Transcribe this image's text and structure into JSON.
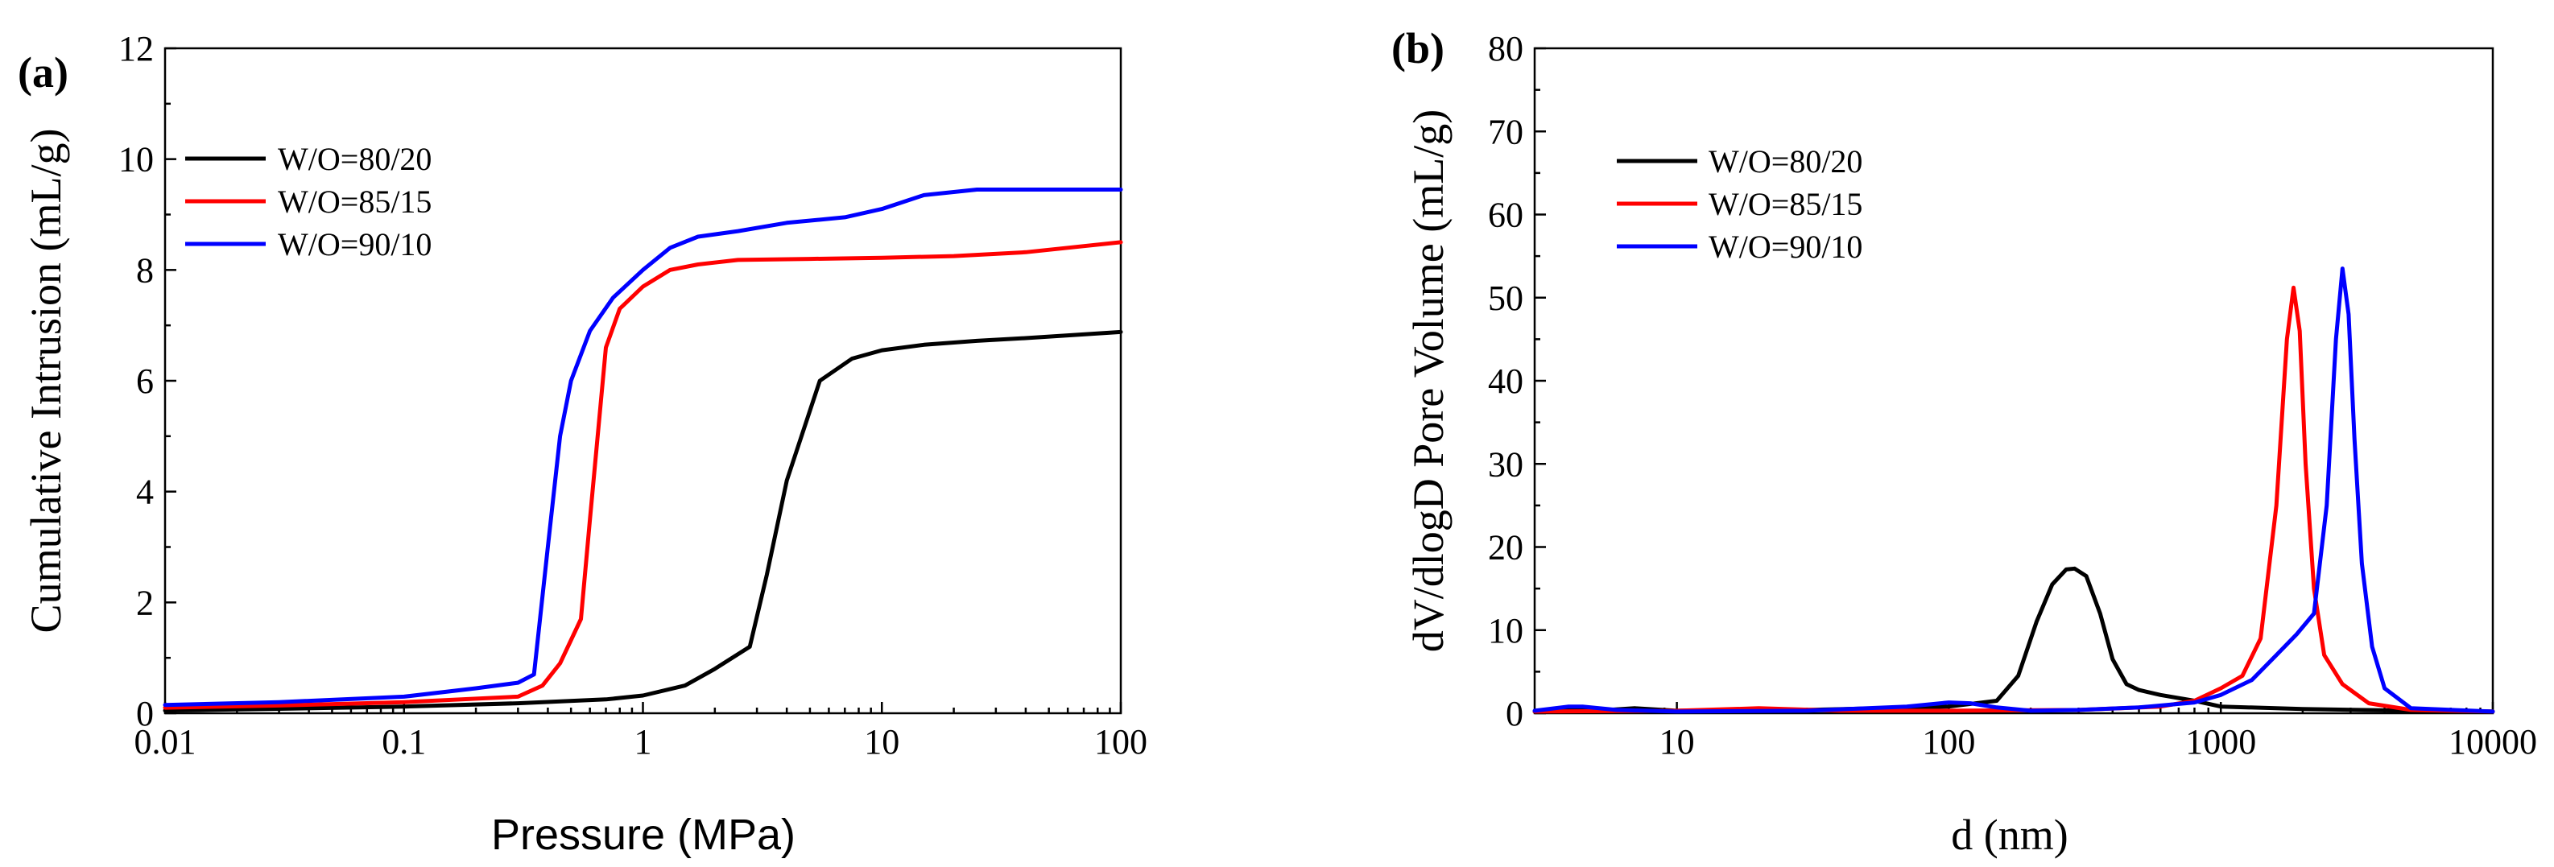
{
  "chart_data": [
    {
      "type": "line",
      "panel_label": "(a)",
      "xlabel": "Pressure (MPa)",
      "ylabel": "Cumulative Intrusion (mL/g)",
      "xscale": "log",
      "xlim": [
        0.01,
        100
      ],
      "ylim": [
        0,
        12
      ],
      "x_ticks": [
        0.01,
        0.1,
        1,
        10,
        100
      ],
      "x_tick_labels": [
        "0.01",
        "0.1",
        "1",
        "10",
        "100"
      ],
      "y_ticks": [
        0,
        2,
        4,
        6,
        8,
        10,
        12
      ],
      "y_tick_labels": [
        "0",
        "2",
        "4",
        "6",
        "8",
        "10",
        "12"
      ],
      "legend_position": "top-left",
      "series": [
        {
          "name": "W/O=80/20",
          "color": "#000000",
          "x": [
            0.01,
            0.03,
            0.1,
            0.3,
            0.7,
            1.0,
            1.5,
            2.0,
            2.8,
            3.3,
            4.0,
            5.5,
            7.5,
            10,
            15,
            25,
            40,
            60,
            100
          ],
          "y": [
            0.05,
            0.08,
            0.12,
            0.18,
            0.25,
            0.32,
            0.5,
            0.8,
            1.2,
            2.5,
            4.2,
            6.0,
            6.4,
            6.55,
            6.65,
            6.72,
            6.77,
            6.82,
            6.88
          ]
        },
        {
          "name": "W/O=85/15",
          "color": "#ff0000",
          "x": [
            0.01,
            0.03,
            0.1,
            0.3,
            0.38,
            0.45,
            0.55,
            0.6,
            0.7,
            0.8,
            1.0,
            1.3,
            1.7,
            2.5,
            5,
            10,
            20,
            40,
            60,
            100
          ],
          "y": [
            0.1,
            0.14,
            0.2,
            0.3,
            0.5,
            0.9,
            1.7,
            3.5,
            6.6,
            7.3,
            7.7,
            8.0,
            8.1,
            8.18,
            8.2,
            8.22,
            8.25,
            8.32,
            8.4,
            8.5
          ]
        },
        {
          "name": "W/O=90/10",
          "color": "#0000ff",
          "x": [
            0.01,
            0.03,
            0.1,
            0.2,
            0.3,
            0.35,
            0.4,
            0.45,
            0.5,
            0.6,
            0.75,
            1.0,
            1.3,
            1.7,
            2.5,
            4,
            7,
            10,
            15,
            25,
            40,
            100
          ],
          "y": [
            0.15,
            0.2,
            0.3,
            0.45,
            0.55,
            0.7,
            3.0,
            5.0,
            6.0,
            6.9,
            7.5,
            8.0,
            8.4,
            8.6,
            8.7,
            8.85,
            8.95,
            9.1,
            9.35,
            9.45,
            9.45,
            9.45
          ]
        }
      ]
    },
    {
      "type": "line",
      "panel_label": "(b)",
      "xlabel": "d (nm)",
      "ylabel": "dV/dlogD Pore Volume (mL/g)",
      "xscale": "log",
      "xlim": [
        3,
        10000
      ],
      "ylim": [
        0,
        80
      ],
      "x_ticks": [
        10,
        100,
        1000,
        10000
      ],
      "x_tick_labels": [
        "10",
        "100",
        "1000",
        "10000"
      ],
      "y_ticks": [
        0,
        10,
        20,
        30,
        40,
        50,
        60,
        70,
        80
      ],
      "y_tick_labels": [
        "0",
        "10",
        "20",
        "30",
        "40",
        "50",
        "60",
        "70",
        "80"
      ],
      "legend_position": "top-left",
      "series": [
        {
          "name": "W/O=80/20",
          "color": "#000000",
          "x": [
            3,
            4,
            5,
            7,
            10,
            30,
            100,
            150,
            180,
            210,
            240,
            270,
            290,
            320,
            360,
            400,
            450,
            500,
            600,
            800,
            1000,
            2000,
            5000,
            10000
          ],
          "y": [
            0.2,
            0.5,
            0.3,
            0.6,
            0.3,
            0.4,
            0.8,
            1.5,
            4.5,
            11,
            15.5,
            17.3,
            17.4,
            16.5,
            12,
            6.5,
            3.5,
            2.8,
            2.2,
            1.5,
            0.8,
            0.5,
            0.3,
            0.2
          ]
        },
        {
          "name": "W/O=85/15",
          "color": "#ff0000",
          "x": [
            3,
            10,
            20,
            40,
            100,
            300,
            600,
            800,
            1000,
            1200,
            1400,
            1600,
            1750,
            1850,
            1950,
            2050,
            2200,
            2400,
            2800,
            3500,
            5000,
            10000
          ],
          "y": [
            0.2,
            0.3,
            0.6,
            0.3,
            0.3,
            0.4,
            0.8,
            1.5,
            3.0,
            4.5,
            9,
            25,
            45,
            51.2,
            46,
            30,
            15,
            7,
            3.5,
            1.2,
            0.4,
            0.2
          ]
        },
        {
          "name": "W/O=90/10",
          "color": "#0000ff",
          "x": [
            3,
            4,
            4.5,
            6,
            10,
            30,
            70,
            100,
            120,
            150,
            200,
            300,
            500,
            800,
            1000,
            1300,
            1600,
            1900,
            2200,
            2450,
            2650,
            2800,
            2950,
            3100,
            3300,
            3600,
            4000,
            5000,
            10000
          ],
          "y": [
            0.3,
            0.8,
            0.8,
            0.4,
            0.2,
            0.3,
            0.8,
            1.3,
            1.2,
            0.7,
            0.3,
            0.4,
            0.7,
            1.3,
            2.2,
            4.0,
            7,
            9.5,
            12,
            25,
            45,
            53.5,
            48,
            33,
            18,
            8,
            3,
            0.6,
            0.2
          ]
        }
      ]
    }
  ]
}
